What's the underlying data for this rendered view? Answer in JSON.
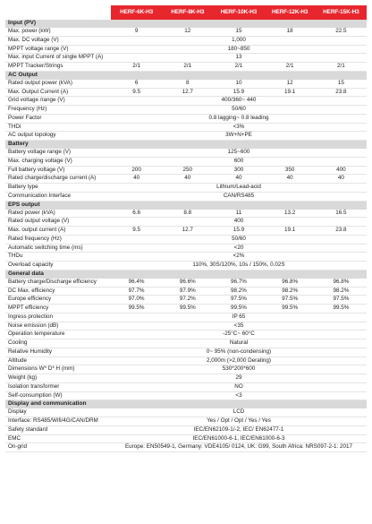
{
  "models": [
    "HERF-6K-H3",
    "HERF-8K-H3",
    "HERF-10K-H3",
    "HERF-12K-H3",
    "HERF-15K-H3"
  ],
  "sections": [
    {
      "title": "Input (PV)",
      "rows": [
        {
          "label": "Max. power (kW)",
          "values": [
            "9",
            "12",
            "15",
            "18",
            "22.5"
          ]
        },
        {
          "label": "Max. DC voltage (V)",
          "span": "1,000"
        },
        {
          "label": "MPPT voltage range (V)",
          "span": "180~850"
        },
        {
          "label": "Max. input Current of single MPPT (A)",
          "span": "13"
        },
        {
          "label": "MPPT Tracker/Strings",
          "values": [
            "2/1",
            "2/1",
            "2/1",
            "2/1",
            "2/1"
          ]
        }
      ]
    },
    {
      "title": "AC Output",
      "rows": [
        {
          "label": "Rated output power (kVA)",
          "values": [
            "6",
            "8",
            "10",
            "12",
            "15"
          ]
        },
        {
          "label": "Max. Output Current (A)",
          "values": [
            "9.5",
            "12.7",
            "15.9",
            "19.1",
            "23.8"
          ]
        },
        {
          "label": "Grid voltage /range (V)",
          "span": "400/360~ 440"
        },
        {
          "label": "Frequency (Hz)",
          "span": "50/60"
        },
        {
          "label": "Power Factor",
          "span": "0.8 lagging~ 0.8 leading"
        },
        {
          "label": "THDi",
          "span": "<3%"
        },
        {
          "label": "AC output topology",
          "span": "3W+N+PE"
        }
      ]
    },
    {
      "title": "Battery",
      "rows": [
        {
          "label": "Battery voltage range (V)",
          "span": "125~600"
        },
        {
          "label": "Max. charging voltage (V)",
          "span": "600"
        },
        {
          "label": "Full battery voltage (V)",
          "values": [
            "200",
            "250",
            "300",
            "350",
            "400"
          ]
        },
        {
          "label": "Rated charge/discharge current (A)",
          "values": [
            "40",
            "40",
            "40",
            "40",
            "40"
          ]
        },
        {
          "label": "Battery type",
          "span": "Lithium/Lead-acid"
        },
        {
          "label": "Communication Interface",
          "span": "CAN/RS485"
        }
      ]
    },
    {
      "title": "EPS output",
      "rows": [
        {
          "label": "Rated power (kVA)",
          "values": [
            "6.6",
            "8.8",
            "11",
            "13.2",
            "16.5"
          ]
        },
        {
          "label": "Rated output voltage (V)",
          "span": "400"
        },
        {
          "label": "Max. output current (A)",
          "values": [
            "9.5",
            "12.7",
            "15.9",
            "19.1",
            "23.8"
          ]
        },
        {
          "label": "Rated frequency (Hz)",
          "span": "50/60"
        },
        {
          "label": "Automatic switching time (ms)",
          "span": "<20"
        },
        {
          "label": "THDu",
          "span": "<2%"
        },
        {
          "label": "Overload capacity",
          "span": "110%, 30S/120%, 10s / 150%, 0.02S"
        }
      ]
    },
    {
      "title": "General data",
      "rows": [
        {
          "label": "Battery charge/Discharge efficiency",
          "values": [
            "96.4%",
            "96.6%",
            "96.7%",
            "96.8%",
            "96.8%"
          ]
        },
        {
          "label": "DC Max. efficiency",
          "values": [
            "97.7%",
            "97.9%",
            "98.2%",
            "98.2%",
            "98.2%"
          ]
        },
        {
          "label": "Europe efficiency",
          "values": [
            "97.0%",
            "97.2%",
            "97.5%",
            "97.5%",
            "97.5%"
          ]
        },
        {
          "label": "MPPT efficiency",
          "values": [
            "99.5%",
            "99.5%",
            "99.5%",
            "99.5%",
            "99.5%"
          ]
        },
        {
          "label": "Ingress protection",
          "span": "IP 65"
        },
        {
          "label": "Noise emission (dB)",
          "span": "<35"
        },
        {
          "label": "Operation temperature",
          "span": "-25°C~ 60°C"
        },
        {
          "label": "Cooling",
          "span": "Natural"
        },
        {
          "label": "Relative Humidity",
          "span": "0~ 95% (non-condensing)"
        },
        {
          "label": "Altitude",
          "span": "2,000m (>2,000 Derating)"
        },
        {
          "label": "Dimensions W* D* H (mm)",
          "span": "530*200*600"
        },
        {
          "label": "Weight (kg)",
          "span": "29"
        },
        {
          "label": "Isolation transformer",
          "span": "NO"
        },
        {
          "label": "Self-consumption (W)",
          "span": "<3"
        }
      ]
    },
    {
      "title": "Display and communication",
      "rows": [
        {
          "label": "Display",
          "span": "LCD"
        },
        {
          "label": "Interface: RS485/Wifi/4G/CAN/DRM",
          "span": "Yes / Opt / Opt / Yes / Yes"
        },
        {
          "label": "Safety standard",
          "span": "IEC/EN62109-1/-2, IEC/ EN62477-1"
        },
        {
          "label": "EMC",
          "span": "IEC/EN61000-6-1, IEC/EN61000-6-3"
        },
        {
          "label": "On-grid",
          "span": "Europe: EN50549-1, Germany: VDE4105/ 0124, UK: G99, South Africa: NRS097-2-1: 2017"
        }
      ]
    }
  ]
}
